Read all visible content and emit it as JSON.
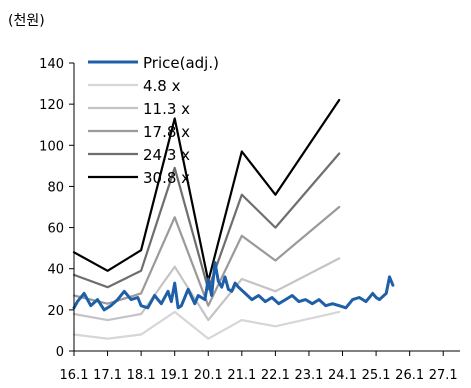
{
  "chart_data": {
    "type": "line",
    "title": "",
    "unit_label": "(천원)",
    "xlabel": "",
    "ylabel": "",
    "ylim": [
      0,
      140
    ],
    "yticks": [
      0,
      20,
      40,
      60,
      80,
      100,
      120,
      140
    ],
    "xlim": [
      2016.1,
      2027.6
    ],
    "xticks": [
      "16.1",
      "17.1",
      "18.1",
      "19.1",
      "20.1",
      "21.1",
      "22.1",
      "23.1",
      "24.1",
      "25.1",
      "26.1",
      "27.1"
    ],
    "grid": false,
    "legend_position": "top-left",
    "series": [
      {
        "name": "Price(adj.)",
        "color": "#1f5fa8",
        "x": [
          2016.1,
          2016.2,
          2016.4,
          2016.6,
          2016.8,
          2017.0,
          2017.2,
          2017.4,
          2017.6,
          2017.8,
          2018.0,
          2018.1,
          2018.3,
          2018.5,
          2018.7,
          2018.9,
          2019.0,
          2019.1,
          2019.2,
          2019.3,
          2019.5,
          2019.7,
          2019.8,
          2020.0,
          2020.1,
          2020.2,
          2020.3,
          2020.4,
          2020.5,
          2020.6,
          2020.7,
          2020.8,
          2020.9,
          2021.0,
          2021.2,
          2021.4,
          2021.6,
          2021.8,
          2022.0,
          2022.2,
          2022.4,
          2022.6,
          2022.8,
          2023.0,
          2023.2,
          2023.4,
          2023.6,
          2023.8,
          2024.0,
          2024.2,
          2024.4,
          2024.6,
          2024.8,
          2025.0,
          2025.1,
          2025.2,
          2025.4,
          2025.5,
          2025.6
        ],
        "values": [
          21,
          24,
          28,
          22,
          25,
          20,
          22,
          25,
          29,
          25,
          26,
          22,
          21,
          27,
          23,
          29,
          24,
          33,
          21,
          22,
          30,
          23,
          27,
          25,
          35,
          27,
          43,
          34,
          31,
          36,
          30,
          29,
          33,
          31,
          28,
          25,
          27,
          24,
          26,
          23,
          25,
          27,
          24,
          25,
          23,
          25,
          22,
          23,
          22,
          21,
          25,
          26,
          24,
          28,
          26,
          25,
          28,
          36,
          32
        ]
      },
      {
        "name": "4.8 x",
        "color": "#d6d6d6",
        "x": [
          2016.1,
          2017.1,
          2018.1,
          2019.1,
          2020.1,
          2021.1,
          2022.1,
          2024.0
        ],
        "values": [
          8,
          6,
          8,
          19,
          6,
          15,
          12,
          19
        ]
      },
      {
        "name": "11.3 x",
        "color": "#c4c4c4",
        "x": [
          2016.1,
          2017.1,
          2018.1,
          2019.1,
          2020.1,
          2021.1,
          2022.1,
          2024.0
        ],
        "values": [
          18,
          15,
          18,
          41,
          15,
          35,
          29,
          45
        ]
      },
      {
        "name": "17.8 x",
        "color": "#9a9a9a",
        "x": [
          2016.1,
          2017.1,
          2018.1,
          2019.1,
          2020.1,
          2021.1,
          2022.1,
          2024.0
        ],
        "values": [
          27,
          23,
          28,
          65,
          22,
          56,
          44,
          70
        ]
      },
      {
        "name": "24.3 x",
        "color": "#6e6e6e",
        "x": [
          2016.1,
          2017.1,
          2018.1,
          2019.1,
          2020.1,
          2021.1,
          2022.1,
          2024.0
        ],
        "values": [
          37,
          31,
          39,
          89,
          30,
          76,
          60,
          96
        ]
      },
      {
        "name": "30.8 x",
        "color": "#000000",
        "x": [
          2016.1,
          2017.1,
          2018.1,
          2019.1,
          2020.1,
          2021.1,
          2022.1,
          2024.0
        ],
        "values": [
          48,
          39,
          49,
          113,
          34,
          97,
          76,
          122
        ]
      }
    ]
  }
}
